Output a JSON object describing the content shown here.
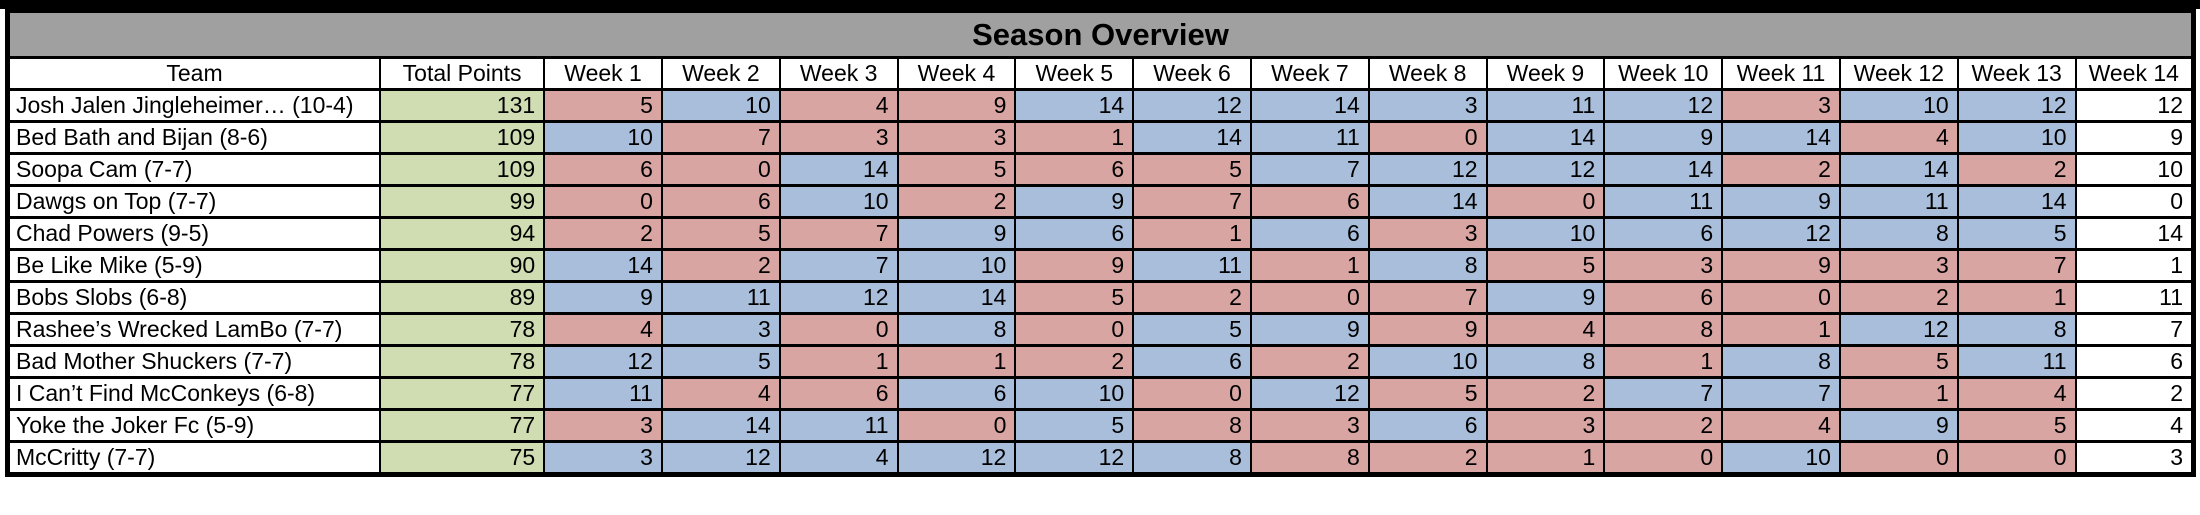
{
  "title": "Season Overview",
  "columns": [
    "Team",
    "Total Points",
    "Week 1",
    "Week 2",
    "Week 3",
    "Week 4",
    "Week 5",
    "Week 6",
    "Week 7",
    "Week 8",
    "Week 9",
    "Week 10",
    "Week 11",
    "Week 12",
    "Week 13",
    "Week 14"
  ],
  "colors": {
    "title_background": "#A0A0A0",
    "total_points_green": "#D0DCB1",
    "win_blue": "#A8BEDB",
    "loss_red": "#D8A5A2",
    "unplayed_white": "#FFFFFF",
    "border_black": "#000000"
  },
  "teams": [
    {
      "name": "Josh Jalen Jingleheimer… (10-4)",
      "total": 131,
      "week_points": [
        5,
        10,
        4,
        9,
        14,
        12,
        14,
        3,
        11,
        12,
        3,
        10,
        12,
        12
      ],
      "week_results": [
        "loss",
        "win",
        "loss",
        "loss",
        "win",
        "win",
        "win",
        "win",
        "win",
        "win",
        "loss",
        "win",
        "win",
        "none"
      ]
    },
    {
      "name": "Bed Bath and Bijan (8-6)",
      "total": 109,
      "week_points": [
        10,
        7,
        3,
        3,
        1,
        14,
        11,
        0,
        14,
        9,
        14,
        4,
        10,
        9
      ],
      "week_results": [
        "win",
        "loss",
        "loss",
        "loss",
        "loss",
        "win",
        "win",
        "loss",
        "win",
        "win",
        "win",
        "loss",
        "win",
        "none"
      ]
    },
    {
      "name": "Soopa Cam (7-7)",
      "total": 109,
      "week_points": [
        6,
        0,
        14,
        5,
        6,
        5,
        7,
        12,
        12,
        14,
        2,
        14,
        2,
        10
      ],
      "week_results": [
        "loss",
        "loss",
        "win",
        "loss",
        "loss",
        "loss",
        "win",
        "win",
        "win",
        "win",
        "loss",
        "win",
        "loss",
        "none"
      ]
    },
    {
      "name": "Dawgs on Top (7-7)",
      "total": 99,
      "week_points": [
        0,
        6,
        10,
        2,
        9,
        7,
        6,
        14,
        0,
        11,
        9,
        11,
        14,
        0
      ],
      "week_results": [
        "loss",
        "loss",
        "win",
        "loss",
        "win",
        "loss",
        "loss",
        "win",
        "loss",
        "win",
        "win",
        "win",
        "win",
        "none"
      ]
    },
    {
      "name": "Chad Powers (9-5)",
      "total": 94,
      "week_points": [
        2,
        5,
        7,
        9,
        6,
        1,
        6,
        3,
        10,
        6,
        12,
        8,
        5,
        14
      ],
      "week_results": [
        "loss",
        "loss",
        "loss",
        "win",
        "win",
        "loss",
        "win",
        "loss",
        "win",
        "win",
        "win",
        "win",
        "win",
        "none"
      ]
    },
    {
      "name": "Be Like Mike (5-9)",
      "total": 90,
      "week_points": [
        14,
        2,
        7,
        10,
        9,
        11,
        1,
        8,
        5,
        3,
        9,
        3,
        7,
        1
      ],
      "week_results": [
        "win",
        "loss",
        "win",
        "win",
        "loss",
        "win",
        "loss",
        "win",
        "loss",
        "loss",
        "loss",
        "loss",
        "loss",
        "none"
      ]
    },
    {
      "name": "Bobs Slobs (6-8)",
      "total": 89,
      "week_points": [
        9,
        11,
        12,
        14,
        5,
        2,
        0,
        7,
        9,
        6,
        0,
        2,
        1,
        11
      ],
      "week_results": [
        "win",
        "win",
        "win",
        "win",
        "loss",
        "loss",
        "loss",
        "loss",
        "win",
        "loss",
        "loss",
        "loss",
        "loss",
        "none"
      ]
    },
    {
      "name": "Rashee’s Wrecked LamBo (7-7)",
      "total": 78,
      "week_points": [
        4,
        3,
        0,
        8,
        0,
        5,
        9,
        9,
        4,
        8,
        1,
        12,
        8,
        7
      ],
      "week_results": [
        "loss",
        "win",
        "loss",
        "win",
        "loss",
        "win",
        "win",
        "loss",
        "loss",
        "loss",
        "loss",
        "win",
        "win",
        "none"
      ]
    },
    {
      "name": "Bad Mother Shuckers (7-7)",
      "total": 78,
      "week_points": [
        12,
        5,
        1,
        1,
        2,
        6,
        2,
        10,
        8,
        1,
        8,
        5,
        11,
        6
      ],
      "week_results": [
        "win",
        "win",
        "loss",
        "loss",
        "loss",
        "win",
        "loss",
        "win",
        "win",
        "loss",
        "win",
        "loss",
        "win",
        "none"
      ]
    },
    {
      "name": "I Can’t Find McConkeys (6-8)",
      "total": 77,
      "week_points": [
        11,
        4,
        6,
        6,
        10,
        0,
        12,
        5,
        2,
        7,
        7,
        1,
        4,
        2
      ],
      "week_results": [
        "win",
        "loss",
        "loss",
        "win",
        "win",
        "loss",
        "win",
        "loss",
        "loss",
        "win",
        "win",
        "loss",
        "loss",
        "none"
      ]
    },
    {
      "name": "Yoke the Joker Fc (5-9)",
      "total": 77,
      "week_points": [
        3,
        14,
        11,
        0,
        5,
        8,
        3,
        6,
        3,
        2,
        4,
        9,
        5,
        4
      ],
      "week_results": [
        "loss",
        "win",
        "win",
        "loss",
        "win",
        "loss",
        "loss",
        "win",
        "loss",
        "loss",
        "loss",
        "win",
        "loss",
        "none"
      ]
    },
    {
      "name": "McCritty (7-7)",
      "total": 75,
      "week_points": [
        3,
        12,
        4,
        12,
        12,
        8,
        8,
        2,
        1,
        0,
        10,
        0,
        0,
        3
      ],
      "week_results": [
        "win",
        "win",
        "win",
        "win",
        "win",
        "win",
        "loss",
        "loss",
        "loss",
        "loss",
        "win",
        "loss",
        "loss",
        "none"
      ]
    }
  ]
}
